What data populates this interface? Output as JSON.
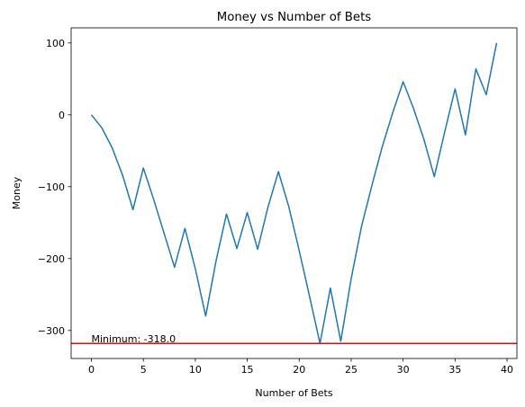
{
  "chart_data": {
    "type": "line",
    "title": "Money vs Number of Bets",
    "xlabel": "Number of Bets",
    "ylabel": "Money",
    "xlim": [
      -1.95,
      40.95
    ],
    "ylim": [
      -339,
      121
    ],
    "xticks": [
      0,
      5,
      10,
      15,
      20,
      25,
      30,
      35,
      40
    ],
    "yticks": [
      -300,
      -200,
      -100,
      0,
      100
    ],
    "grid": false,
    "series": [
      {
        "color": "#1f77b4",
        "x": [
          0,
          1,
          2,
          3,
          4,
          5,
          6,
          7,
          8,
          9,
          10,
          11,
          12,
          13,
          14,
          15,
          16,
          17,
          18,
          19,
          20,
          21,
          22,
          23,
          24,
          25,
          26,
          27,
          28,
          29,
          30,
          31,
          32,
          33,
          34,
          35,
          36,
          37,
          38,
          39
        ],
        "y": [
          0,
          -18,
          -46,
          -84,
          -132,
          -74,
          -118,
          -165,
          -212,
          -158,
          -214,
          -280,
          -203,
          -138,
          -186,
          -136,
          -187,
          -128,
          -79,
          -128,
          -189,
          -253,
          -318,
          -241,
          -315,
          -228,
          -155,
          -98,
          -44,
          3,
          46,
          9,
          -34,
          -86,
          -24,
          36,
          -28,
          64,
          28,
          100
        ]
      }
    ],
    "hline": {
      "y": -318,
      "color": "#ff0000"
    },
    "annotation": {
      "text": "Minimum: -318.0",
      "x": 0,
      "y": -318
    }
  }
}
